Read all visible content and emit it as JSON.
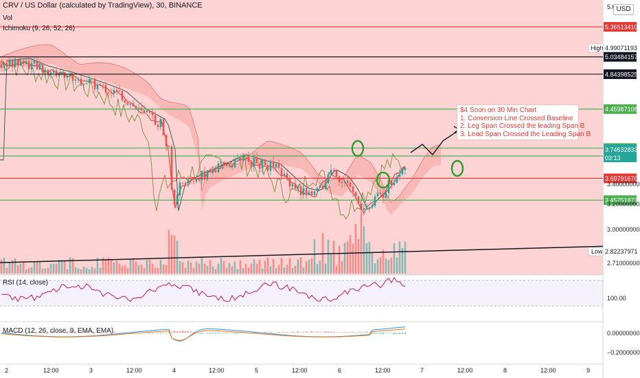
{
  "header": {
    "title": "CRV / US Dollar (calculated by TradingView), 30, BINANCE",
    "vol": "Vol",
    "ichimoku": "Ichimoku (9, 26, 52, 26)"
  },
  "currency_button": "USD",
  "annotation": {
    "line0": "$4 Soon on 30 Min Chart",
    "line1": "1. Conversion Line Crossed Baseline",
    "line2": "2. Leg Span Crossed the leading Span B",
    "line3": "3. Lead Span Crossed the Leading Span B"
  },
  "rsi_label": "RSI (14, close)",
  "macd_label": "MACD (12, 26, close, 9, EMA, EMA)",
  "colors": {
    "up": "#26a69a",
    "down": "#ef5350",
    "zone": "#fdd3d3",
    "hline_green": "#4caf50",
    "hline_red": "#e53935",
    "hline_black": "#131722",
    "chikou": "#7d8b3a",
    "conversion": "#e53935",
    "base": "#2f4f4f",
    "rsi": "#c2185b",
    "macd": "#2196f3",
    "signal": "#ff6d00",
    "circle": "#2e9e2e"
  },
  "chart_data": {
    "type": "candlestick",
    "symbol": "CRV / US Dollar",
    "interval": "30",
    "exchange": "BINANCE",
    "price_range": [
      2.65,
      5.6
    ],
    "price_axis_ticks": [
      "5.6",
      "3.40000000",
      "3.20000000",
      "3.00000000",
      "2.71000000"
    ],
    "time_axis_labels": [
      "2",
      "12:00",
      "3",
      "12:00",
      "4",
      "12:00",
      "5",
      "12:00",
      "6",
      "12:00",
      "7",
      "12:00",
      "8",
      "12:00",
      "9"
    ],
    "horizontal_levels": [
      {
        "price": 5.3651341,
        "label": "5.36513410",
        "kind": "red"
      },
      {
        "price": 5.03484157,
        "label": "5.03484157",
        "kind": "black"
      },
      {
        "price": 4.84398525,
        "label": "4.84398525",
        "kind": "black"
      },
      {
        "price": 4.45987108,
        "label": "4.45987108",
        "kind": "green"
      },
      {
        "price": 4.03090736,
        "label": "4.03090736",
        "kind": "green"
      },
      {
        "price": 3.94362892,
        "label": "3.94362892",
        "kind": "green"
      },
      {
        "price": 3.6979167,
        "label": "3.69791670",
        "kind": "red"
      },
      {
        "price": 3.45751873,
        "label": "3.45751873",
        "kind": "green"
      }
    ],
    "price_markers": [
      {
        "label": "3.74632833",
        "sub": "03:13",
        "kind": "current"
      },
      {
        "label": "High",
        "value": "4.99071193"
      },
      {
        "label": "Low",
        "value": "2.82237971"
      }
    ],
    "rsi": {
      "ticks": [
        "100.00"
      ]
    },
    "macd": {
      "ticks": [
        "0.00000000",
        "−0.20000000"
      ]
    }
  }
}
